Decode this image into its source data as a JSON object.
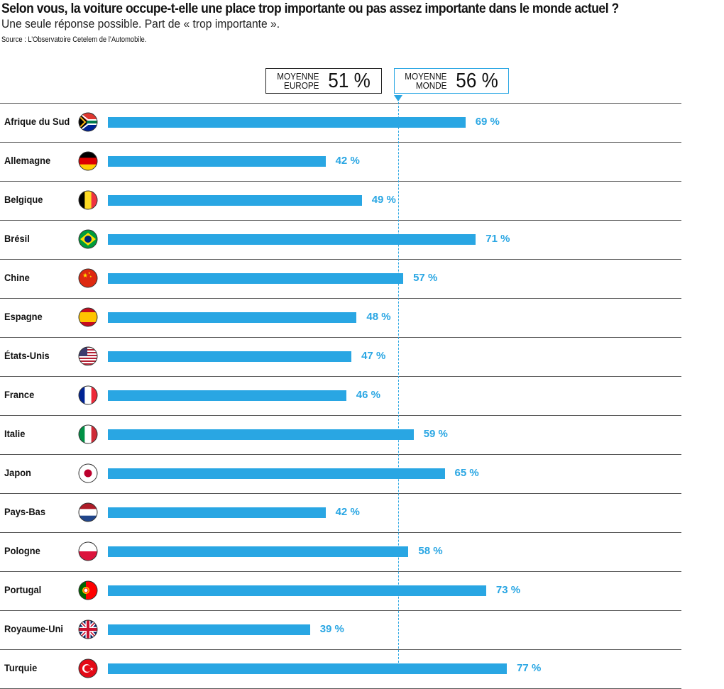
{
  "chart_data": {
    "type": "bar",
    "orientation": "horizontal",
    "title": "Selon vous, la voiture occupe-t-elle une place trop importante ou pas assez importante dans le monde actuel ?",
    "subtitle": "Une seule réponse possible. Part de « trop importante ».",
    "source": "Source : L’Observatoire Cetelem de l’Automobile.",
    "categories": [
      "Afrique du Sud",
      "Allemagne",
      "Belgique",
      "Brésil",
      "Chine",
      "Espagne",
      "États-Unis",
      "France",
      "Italie",
      "Japon",
      "Pays-Bas",
      "Pologne",
      "Portugal",
      "Royaume-Uni",
      "Turquie"
    ],
    "values": [
      69,
      42,
      49,
      71,
      57,
      48,
      47,
      46,
      59,
      65,
      42,
      58,
      73,
      39,
      77
    ],
    "value_labels": [
      "69 %",
      "42 %",
      "49 %",
      "71 %",
      "57 %",
      "48 %",
      "47 %",
      "46 %",
      "59 %",
      "65 %",
      "42 %",
      "58 %",
      "73 %",
      "39 %",
      "77 %"
    ],
    "flag_icons": [
      "za",
      "de",
      "be",
      "br",
      "cn",
      "es",
      "us",
      "fr",
      "it",
      "jp",
      "nl",
      "pl",
      "pt",
      "gb",
      "tr"
    ],
    "xlim": [
      0,
      100
    ],
    "averages": [
      {
        "label_line1": "MOYENNE",
        "label_line2": "EUROPE",
        "value_label": "51 %",
        "value": 51
      },
      {
        "label_line1": "MOYENNE",
        "label_line2": "MONDE",
        "value_label": "56 %",
        "value": 56
      }
    ],
    "reference_line": 56,
    "colors": {
      "bar": "#29a6e3",
      "text": "#111111"
    }
  }
}
